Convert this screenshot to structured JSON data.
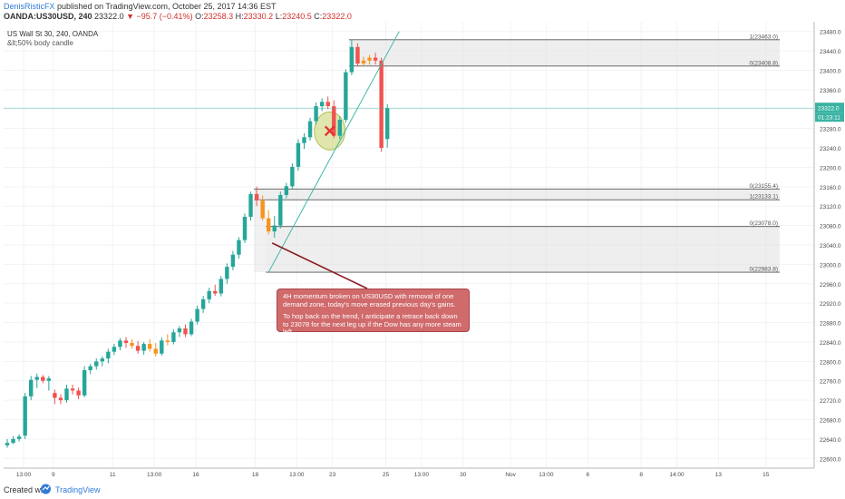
{
  "header": {
    "author": "DenisRisticFX",
    "published": "published on TradingView.com, October 25, 2017 14:36 EST",
    "symbol_line": "OANDA:US30USD, 240",
    "last": "23322.0",
    "change": "▼ −95.7 (−0.41%)",
    "o_label": "O:",
    "o_value": "23258.3",
    "h_label": "H:",
    "h_value": "23330.2",
    "l_label": "L:",
    "l_value": "23240.5",
    "c_label": "C:",
    "c_value": "23322.0"
  },
  "legend": {
    "title": "US Wall St 30, 240, OANDA",
    "indicator": "&lt;50% body candle"
  },
  "annotation": {
    "para1": "4H momentum broken on US30USD with removal of one demand zone, today's move erased previous day's gains.",
    "para2": "To hop back on the trend, I anticipate a retrace back down to 23078 for the next leg up if the Dow has any more steam left."
  },
  "footer": {
    "created": "Created with",
    "brand": "TradingView"
  },
  "colors": {
    "up": "#26a69a",
    "down": "#ef5350",
    "highlight": "#f7931e",
    "trendline": "#3fb8a6",
    "price_tag": "#3bb3a3",
    "zone_fill": "#e0e0e0",
    "zone_line": "#555555",
    "ellipse": "#c8d26a"
  },
  "chart_data": {
    "type": "candlestick",
    "symbol": "OANDA:US30USD",
    "timeframe": "240",
    "ylim": [
      22580,
      23500
    ],
    "current_price": 23322.0,
    "price_label_top": "23322.0",
    "countdown_label": "01:23:11",
    "y_ticks": [
      "23480.0",
      "23440.0",
      "23400.0",
      "23360.0",
      "23320.0",
      "23280.0",
      "23240.0",
      "23200.0",
      "23160.0",
      "23120.0",
      "23080.0",
      "23040.0",
      "23000.0",
      "22960.0",
      "22920.0",
      "22880.0",
      "22840.0",
      "22800.0",
      "22760.0",
      "22720.0",
      "22680.0",
      "22640.0",
      "22600.0"
    ],
    "x_ticks": [
      {
        "label": "13:00",
        "bar": 0
      },
      {
        "label": "9",
        "bar": 5
      },
      {
        "label": "11",
        "bar": 15
      },
      {
        "label": "13:00",
        "bar": 22
      },
      {
        "label": "16",
        "bar": 29
      },
      {
        "label": "18",
        "bar": 39
      },
      {
        "label": "13:00",
        "bar": 46
      },
      {
        "label": "23",
        "bar": 52
      },
      {
        "label": "25",
        "bar": 61
      },
      {
        "label": "13:00",
        "bar": 67
      },
      {
        "label": "30",
        "bar": 74
      },
      {
        "label": "Nov",
        "bar": 82
      },
      {
        "label": "13:00",
        "bar": 88
      },
      {
        "label": "6",
        "bar": 95
      },
      {
        "label": "8",
        "bar": 104
      },
      {
        "label": "14:00",
        "bar": 110
      },
      {
        "label": "13",
        "bar": 117
      },
      {
        "label": "15",
        "bar": 125
      }
    ],
    "fib_zones": [
      {
        "top": 23463.0,
        "bottom": 23408.8,
        "label_top": "1(23463.0)",
        "label_bottom": "0(23408.8)",
        "start_bar": 58
      },
      {
        "top": 23155.4,
        "bottom": 23133.1,
        "label_top": "0(23155.4)",
        "label_bottom": "1(23133.1)",
        "start_bar": 42
      },
      {
        "top": 23078.0,
        "bottom": 22983.8,
        "label_top": "0(23078.0)",
        "label_bottom": "0(22983.8)",
        "start_bar": 44
      }
    ],
    "trendline": {
      "from": {
        "bar": 44,
        "price": 22983.8
      },
      "to": {
        "bar": 66,
        "price": 23480
      }
    },
    "candles": [
      {
        "o": 22627,
        "h": 22640,
        "l": 22622,
        "c": 22632,
        "hl": false
      },
      {
        "o": 22632,
        "h": 22646,
        "l": 22630,
        "c": 22640,
        "hl": false
      },
      {
        "o": 22640,
        "h": 22650,
        "l": 22635,
        "c": 22645,
        "hl": false
      },
      {
        "o": 22647,
        "h": 22735,
        "l": 22640,
        "c": 22728,
        "hl": false
      },
      {
        "o": 22728,
        "h": 22770,
        "l": 22720,
        "c": 22762,
        "hl": false
      },
      {
        "o": 22762,
        "h": 22775,
        "l": 22745,
        "c": 22768,
        "hl": false
      },
      {
        "o": 22768,
        "h": 22772,
        "l": 22755,
        "c": 22760,
        "hl": false
      },
      {
        "o": 22760,
        "h": 22770,
        "l": 22740,
        "c": 22765,
        "hl": false
      },
      {
        "o": 22735,
        "h": 22742,
        "l": 22712,
        "c": 22725,
        "hl": false
      },
      {
        "o": 22725,
        "h": 22732,
        "l": 22712,
        "c": 22720,
        "hl": false
      },
      {
        "o": 22720,
        "h": 22752,
        "l": 22715,
        "c": 22744,
        "hl": false
      },
      {
        "o": 22744,
        "h": 22752,
        "l": 22732,
        "c": 22740,
        "hl": false
      },
      {
        "o": 22740,
        "h": 22746,
        "l": 22722,
        "c": 22730,
        "hl": false
      },
      {
        "o": 22730,
        "h": 22790,
        "l": 22726,
        "c": 22782,
        "hl": false
      },
      {
        "o": 22782,
        "h": 22795,
        "l": 22774,
        "c": 22790,
        "hl": false
      },
      {
        "o": 22790,
        "h": 22806,
        "l": 22783,
        "c": 22800,
        "hl": false
      },
      {
        "o": 22800,
        "h": 22811,
        "l": 22790,
        "c": 22806,
        "hl": false
      },
      {
        "o": 22806,
        "h": 22826,
        "l": 22796,
        "c": 22820,
        "hl": false
      },
      {
        "o": 22820,
        "h": 22836,
        "l": 22813,
        "c": 22830,
        "hl": false
      },
      {
        "o": 22830,
        "h": 22848,
        "l": 22823,
        "c": 22843,
        "hl": false
      },
      {
        "o": 22843,
        "h": 22850,
        "l": 22828,
        "c": 22838,
        "hl": false
      },
      {
        "o": 22838,
        "h": 22846,
        "l": 22826,
        "c": 22832,
        "hl": true
      },
      {
        "o": 22832,
        "h": 22842,
        "l": 22816,
        "c": 22822,
        "hl": false
      },
      {
        "o": 22822,
        "h": 22840,
        "l": 22814,
        "c": 22836,
        "hl": false
      },
      {
        "o": 22836,
        "h": 22846,
        "l": 22820,
        "c": 22826,
        "hl": true
      },
      {
        "o": 22826,
        "h": 22838,
        "l": 22810,
        "c": 22816,
        "hl": true
      },
      {
        "o": 22816,
        "h": 22850,
        "l": 22812,
        "c": 22843,
        "hl": false
      },
      {
        "o": 22843,
        "h": 22856,
        "l": 22833,
        "c": 22840,
        "hl": true
      },
      {
        "o": 22840,
        "h": 22866,
        "l": 22835,
        "c": 22860,
        "hl": false
      },
      {
        "o": 22860,
        "h": 22873,
        "l": 22850,
        "c": 22868,
        "hl": false
      },
      {
        "o": 22868,
        "h": 22876,
        "l": 22850,
        "c": 22856,
        "hl": false
      },
      {
        "o": 22856,
        "h": 22888,
        "l": 22852,
        "c": 22882,
        "hl": false
      },
      {
        "o": 22882,
        "h": 22915,
        "l": 22876,
        "c": 22908,
        "hl": false
      },
      {
        "o": 22908,
        "h": 22935,
        "l": 22900,
        "c": 22928,
        "hl": false
      },
      {
        "o": 22928,
        "h": 22952,
        "l": 22920,
        "c": 22945,
        "hl": false
      },
      {
        "o": 22945,
        "h": 22958,
        "l": 22935,
        "c": 22940,
        "hl": false
      },
      {
        "o": 22940,
        "h": 22976,
        "l": 22934,
        "c": 22970,
        "hl": false
      },
      {
        "o": 22970,
        "h": 23002,
        "l": 22960,
        "c": 22995,
        "hl": false
      },
      {
        "o": 22995,
        "h": 23028,
        "l": 22988,
        "c": 23020,
        "hl": false
      },
      {
        "o": 23020,
        "h": 23056,
        "l": 23012,
        "c": 23050,
        "hl": false
      },
      {
        "o": 23050,
        "h": 23105,
        "l": 23044,
        "c": 23098,
        "hl": false
      },
      {
        "o": 23098,
        "h": 23150,
        "l": 23090,
        "c": 23145,
        "hl": false
      },
      {
        "o": 23145,
        "h": 23160,
        "l": 23120,
        "c": 23132,
        "hl": false
      },
      {
        "o": 23132,
        "h": 23142,
        "l": 23090,
        "c": 23095,
        "hl": true
      },
      {
        "o": 23095,
        "h": 23112,
        "l": 23062,
        "c": 23068,
        "hl": true
      },
      {
        "o": 23068,
        "h": 23100,
        "l": 23055,
        "c": 23080,
        "hl": false
      },
      {
        "o": 23080,
        "h": 23150,
        "l": 23074,
        "c": 23143,
        "hl": false
      },
      {
        "o": 23143,
        "h": 23168,
        "l": 23136,
        "c": 23161,
        "hl": false
      },
      {
        "o": 23161,
        "h": 23208,
        "l": 23154,
        "c": 23201,
        "hl": false
      },
      {
        "o": 23201,
        "h": 23258,
        "l": 23193,
        "c": 23250,
        "hl": false
      },
      {
        "o": 23250,
        "h": 23270,
        "l": 23238,
        "c": 23262,
        "hl": false
      },
      {
        "o": 23262,
        "h": 23302,
        "l": 23255,
        "c": 23295,
        "hl": false
      },
      {
        "o": 23295,
        "h": 23334,
        "l": 23288,
        "c": 23326,
        "hl": false
      },
      {
        "o": 23326,
        "h": 23342,
        "l": 23316,
        "c": 23335,
        "hl": false
      },
      {
        "o": 23335,
        "h": 23346,
        "l": 23320,
        "c": 23326,
        "hl": false
      },
      {
        "o": 23326,
        "h": 23338,
        "l": 23260,
        "c": 23265,
        "hl": false
      },
      {
        "o": 23265,
        "h": 23305,
        "l": 23258,
        "c": 23298,
        "hl": false
      },
      {
        "o": 23298,
        "h": 23402,
        "l": 23292,
        "c": 23396,
        "hl": false
      },
      {
        "o": 23396,
        "h": 23463,
        "l": 23390,
        "c": 23448,
        "hl": false
      },
      {
        "o": 23448,
        "h": 23456,
        "l": 23408,
        "c": 23414,
        "hl": false
      },
      {
        "o": 23414,
        "h": 23428,
        "l": 23408,
        "c": 23420,
        "hl": true
      },
      {
        "o": 23420,
        "h": 23432,
        "l": 23412,
        "c": 23426,
        "hl": true
      },
      {
        "o": 23426,
        "h": 23436,
        "l": 23412,
        "c": 23420,
        "hl": false
      },
      {
        "o": 23420,
        "h": 23426,
        "l": 23232,
        "c": 23240,
        "hl": false
      },
      {
        "o": 23258.3,
        "h": 23330.2,
        "l": 23240.5,
        "c": 23322.0,
        "hl": false
      }
    ]
  }
}
